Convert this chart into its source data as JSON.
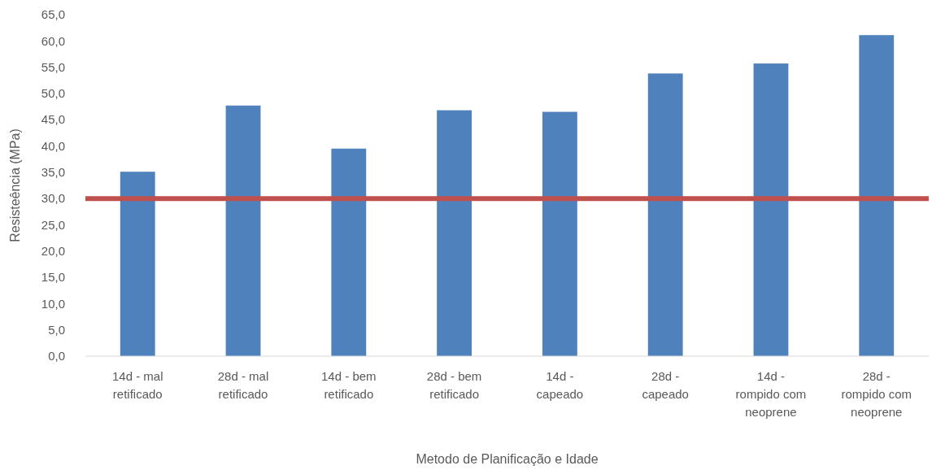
{
  "chart_data": {
    "type": "bar",
    "xlabel": "Metodo de Planificação e Idade",
    "ylabel": "Resisteência (MPa)",
    "categories": [
      "14d - mal retificado",
      "28d - mal retificado",
      "14d - bem retificado",
      "28d - bem retificado",
      "14d - capeado",
      "28d - capeado",
      "14d - rompido com neoprene",
      "28d - rompido com neoprene"
    ],
    "values": [
      35.1,
      47.7,
      39.5,
      46.8,
      46.5,
      53.8,
      55.7,
      61.1
    ],
    "color": "#4f81bd",
    "ylim": [
      0,
      65
    ],
    "yticks": [
      {
        "value": 0,
        "label": "0,0"
      },
      {
        "value": 5,
        "label": "5,0"
      },
      {
        "value": 10,
        "label": "10,0"
      },
      {
        "value": 15,
        "label": "15,0"
      },
      {
        "value": 20,
        "label": "20,0"
      },
      {
        "value": 25,
        "label": "25,0"
      },
      {
        "value": 30,
        "label": "30,0"
      },
      {
        "value": 35,
        "label": "35,0"
      },
      {
        "value": 40,
        "label": "40,0"
      },
      {
        "value": 45,
        "label": "45,0"
      },
      {
        "value": 50,
        "label": "50,0"
      },
      {
        "value": 55,
        "label": "55,0"
      },
      {
        "value": 60,
        "label": "60,0"
      },
      {
        "value": 65,
        "label": "65,0"
      }
    ],
    "ref_lines": [
      {
        "axis": "y",
        "value": 30,
        "color": "#c0504d"
      }
    ],
    "grid": false
  }
}
